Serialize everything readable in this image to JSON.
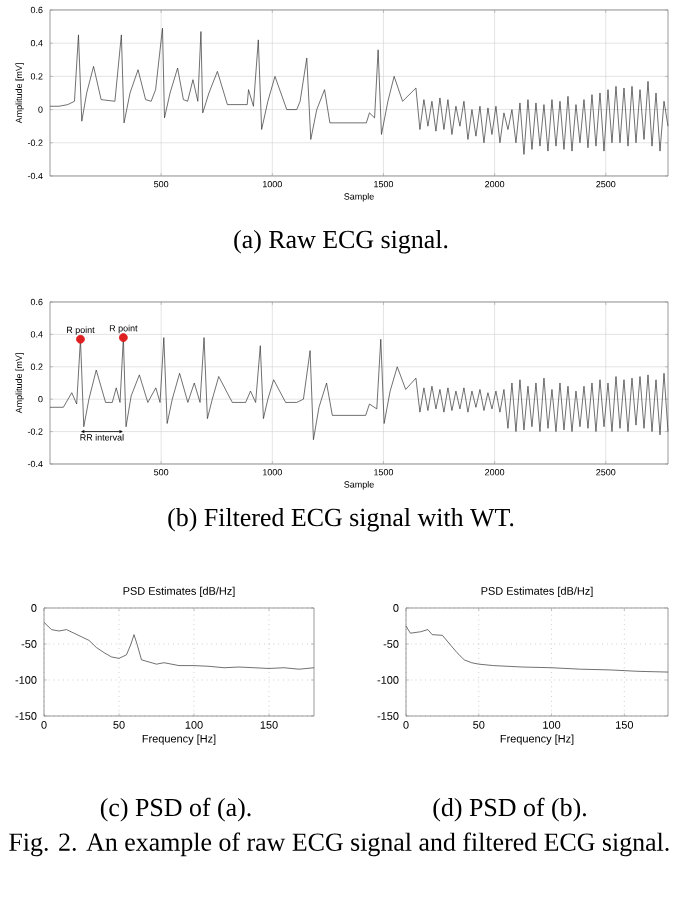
{
  "chart_data": [
    {
      "type": "line",
      "xlabel": "Sample",
      "ylabel": "Amplitude [mV]",
      "xlim": [
        0,
        2780
      ],
      "ylim": [
        -0.4,
        0.6
      ],
      "xticks": [
        500,
        1000,
        1500,
        2000,
        2500
      ],
      "yticks": [
        -0.4,
        -0.2,
        0,
        0.2,
        0.4,
        0.6
      ],
      "grid": true,
      "annotations": [
        "(a) Raw ECG signal."
      ],
      "series": [
        {
          "color": "#333333",
          "x": [
            0,
            40,
            80,
            110,
            128,
            143,
            165,
            196,
            230,
            292,
            321,
            333,
            360,
            396,
            430,
            455,
            475,
            506,
            515,
            540,
            574,
            600,
            619,
            643,
            665,
            679,
            687,
            715,
            753,
            798,
            850,
            887,
            893,
            915,
            937,
            952,
            980,
            1012,
            1065,
            1110,
            1125,
            1155,
            1173,
            1200,
            1235,
            1259,
            1423,
            1437,
            1460,
            1476,
            1491,
            1520,
            1548,
            1586,
            1646,
            1664,
            1682,
            1700,
            1718,
            1736,
            1754,
            1772,
            1790,
            1808,
            1826,
            1844,
            1862,
            1880,
            1898,
            1916,
            1934,
            1952,
            1970,
            1988,
            2006,
            2024,
            2042,
            2060,
            2078,
            2096,
            2114,
            2132,
            2150,
            2168,
            2186,
            2204,
            2222,
            2240,
            2258,
            2276,
            2294,
            2312,
            2330,
            2348,
            2366,
            2384,
            2402,
            2420,
            2438,
            2456,
            2474,
            2492,
            2510,
            2528,
            2546,
            2564,
            2582,
            2600,
            2618,
            2636,
            2654,
            2672,
            2690,
            2708,
            2726,
            2744,
            2762,
            2780
          ],
          "values": [
            0.02,
            0.02,
            0.03,
            0.05,
            0.45,
            -0.07,
            0.1,
            0.26,
            0.06,
            0.05,
            0.45,
            -0.08,
            0.1,
            0.24,
            0.06,
            0.05,
            0.12,
            0.49,
            -0.05,
            0.1,
            0.25,
            0.06,
            0.05,
            0.18,
            0.05,
            0.47,
            -0.02,
            0.1,
            0.23,
            0.03,
            0.03,
            0.03,
            0.12,
            0.02,
            0.42,
            -0.12,
            0.05,
            0.2,
            0.0,
            0.0,
            0.05,
            0.31,
            -0.18,
            0.0,
            0.12,
            -0.08,
            -0.08,
            -0.02,
            -0.05,
            0.36,
            -0.15,
            0.05,
            0.2,
            0.05,
            0.13,
            -0.12,
            0.06,
            -0.1,
            0.05,
            -0.13,
            0.07,
            -0.12,
            0.06,
            -0.15,
            0.02,
            -0.1,
            0.05,
            -0.18,
            0.0,
            -0.16,
            0.02,
            -0.2,
            0.01,
            -0.15,
            0.02,
            -0.2,
            -0.02,
            -0.12,
            0.0,
            -0.2,
            0.04,
            -0.27,
            0.06,
            -0.24,
            0.04,
            -0.22,
            0.03,
            -0.25,
            0.06,
            -0.22,
            0.05,
            -0.24,
            0.08,
            -0.25,
            0.03,
            -0.2,
            0.06,
            -0.23,
            0.09,
            -0.22,
            0.1,
            -0.25,
            0.12,
            -0.2,
            0.14,
            -0.2,
            0.13,
            -0.22,
            0.14,
            -0.2,
            0.12,
            -0.18,
            0.17,
            -0.22,
            0.1,
            -0.25,
            0.05,
            -0.1
          ]
        }
      ]
    },
    {
      "type": "line",
      "xlabel": "Sample",
      "ylabel": "Amplitude [mV]",
      "xlim": [
        0,
        2780
      ],
      "ylim": [
        -0.4,
        0.6
      ],
      "xticks": [
        500,
        1000,
        1500,
        2000,
        2500
      ],
      "yticks": [
        -0.4,
        -0.2,
        0,
        0.2,
        0.4,
        0.6
      ],
      "grid": true,
      "annotations": [
        {
          "text": "R point",
          "x": 137,
          "y": 0.37
        },
        {
          "text": "R point",
          "x": 330,
          "y": 0.38
        },
        "RR interval",
        "(b) Filtered ECG signal with WT."
      ],
      "series": [
        {
          "color": "#333333",
          "x": [
            0,
            60,
            98,
            120,
            137,
            152,
            175,
            208,
            250,
            280,
            298,
            315,
            330,
            342,
            365,
            402,
            440,
            476,
            495,
            512,
            527,
            550,
            583,
            620,
            649,
            675,
            693,
            708,
            730,
            759,
            820,
            880,
            902,
            925,
            946,
            960,
            980,
            1006,
            1060,
            1110,
            1140,
            1170,
            1185,
            1210,
            1244,
            1270,
            1420,
            1437,
            1470,
            1488,
            1503,
            1530,
            1562,
            1600,
            1646,
            1664,
            1682,
            1700,
            1718,
            1736,
            1754,
            1772,
            1790,
            1808,
            1826,
            1844,
            1862,
            1880,
            1898,
            1916,
            1934,
            1952,
            1970,
            1988,
            2006,
            2024,
            2042,
            2060,
            2078,
            2096,
            2114,
            2132,
            2150,
            2168,
            2186,
            2204,
            2222,
            2240,
            2258,
            2276,
            2294,
            2312,
            2330,
            2348,
            2366,
            2384,
            2402,
            2420,
            2438,
            2456,
            2474,
            2492,
            2510,
            2528,
            2546,
            2564,
            2582,
            2600,
            2618,
            2636,
            2654,
            2672,
            2690,
            2708,
            2726,
            2744,
            2762,
            2780
          ],
          "values": [
            -0.05,
            -0.05,
            0.04,
            -0.03,
            0.37,
            -0.17,
            0.0,
            0.18,
            -0.02,
            -0.02,
            0.07,
            -0.02,
            0.38,
            -0.17,
            0.02,
            0.15,
            -0.02,
            0.07,
            -0.02,
            0.38,
            -0.15,
            0.0,
            0.16,
            -0.02,
            0.1,
            -0.02,
            0.38,
            -0.12,
            0.0,
            0.14,
            -0.02,
            -0.02,
            0.05,
            -0.02,
            0.33,
            -0.12,
            0.0,
            0.12,
            -0.02,
            -0.02,
            0.0,
            0.3,
            -0.25,
            -0.05,
            0.1,
            -0.1,
            -0.1,
            -0.03,
            -0.06,
            0.37,
            -0.15,
            0.05,
            0.2,
            0.06,
            0.13,
            -0.08,
            0.07,
            -0.07,
            0.08,
            -0.06,
            0.06,
            -0.08,
            0.07,
            -0.07,
            0.05,
            -0.06,
            0.07,
            -0.08,
            0.05,
            -0.05,
            0.06,
            -0.07,
            0.04,
            -0.06,
            0.05,
            -0.08,
            0.06,
            -0.18,
            0.1,
            -0.2,
            0.12,
            -0.19,
            0.08,
            -0.17,
            0.1,
            -0.2,
            0.13,
            -0.18,
            0.06,
            -0.2,
            0.1,
            -0.19,
            0.08,
            -0.2,
            0.05,
            -0.17,
            0.08,
            -0.18,
            0.1,
            -0.2,
            0.12,
            -0.17,
            0.1,
            -0.2,
            0.14,
            -0.18,
            0.12,
            -0.2,
            0.13,
            -0.16,
            0.14,
            -0.18,
            0.15,
            -0.2,
            0.12,
            -0.22,
            0.16,
            -0.2
          ]
        },
        {
          "type": "scatter",
          "color": "#e02020",
          "x": [
            137,
            330
          ],
          "values": [
            0.37,
            0.38
          ]
        }
      ]
    },
    {
      "type": "line",
      "title": "PSD Estimates [dB/Hz]",
      "xlabel": "Frequency [Hz]",
      "xlim": [
        0,
        180
      ],
      "ylim": [
        -150,
        0
      ],
      "xticks": [
        0,
        50,
        100,
        150
      ],
      "yticks": [
        -150,
        -100,
        -50,
        0
      ],
      "grid": true,
      "annotations": [
        "(c) PSD of (a)."
      ],
      "series": [
        {
          "color": "#333333",
          "x": [
            0,
            5,
            10,
            15,
            20,
            25,
            30,
            35,
            40,
            45,
            50,
            55,
            58,
            60,
            62,
            65,
            70,
            75,
            80,
            90,
            100,
            110,
            120,
            130,
            140,
            150,
            160,
            170,
            180
          ],
          "values": [
            -20,
            -30,
            -32,
            -30,
            -35,
            -40,
            -45,
            -55,
            -62,
            -68,
            -70,
            -65,
            -50,
            -37,
            -50,
            -72,
            -75,
            -78,
            -76,
            -80,
            -80,
            -81,
            -83,
            -82,
            -83,
            -84,
            -83,
            -85,
            -83
          ]
        }
      ]
    },
    {
      "type": "line",
      "title": "PSD Estimates [dB/Hz]",
      "xlabel": "Frequency [Hz]",
      "xlim": [
        0,
        180
      ],
      "ylim": [
        -150,
        0
      ],
      "xticks": [
        0,
        50,
        100,
        150
      ],
      "yticks": [
        -150,
        -100,
        -50,
        0
      ],
      "grid": true,
      "annotations": [
        "(d) PSD of (b).",
        "Fig. 2. An example of raw ECG signal and filtered ECG signal."
      ],
      "series": [
        {
          "color": "#333333",
          "x": [
            0,
            3,
            10,
            15,
            18,
            25,
            30,
            35,
            40,
            45,
            50,
            60,
            80,
            100,
            120,
            140,
            160,
            180
          ],
          "values": [
            -25,
            -35,
            -33,
            -30,
            -37,
            -38,
            -50,
            -62,
            -72,
            -76,
            -78,
            -80,
            -82,
            -83,
            -85,
            -86,
            -88,
            -89
          ]
        }
      ]
    }
  ]
}
